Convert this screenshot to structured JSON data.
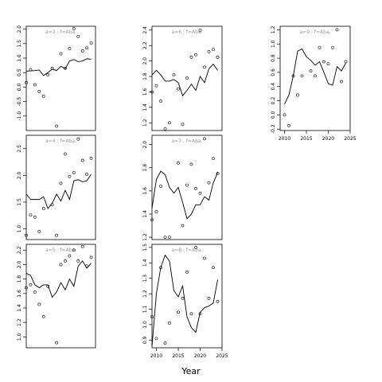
{
  "figure": {
    "xlabel": "Year"
  },
  "chart_data": [
    {
      "type": "line",
      "title": "a=3 : f=Aba.",
      "xlim": [
        2009,
        2025
      ],
      "ylim": [
        -1.5,
        2.1
      ],
      "yticks": [
        -1.0,
        -0.5,
        0.0,
        0.5,
        1.0,
        1.5,
        2.0
      ],
      "show_xticks": false,
      "series": [
        {
          "kind": "line",
          "x": [
            2009,
            2010,
            2011,
            2012,
            2013,
            2014,
            2015,
            2016,
            2017,
            2018,
            2019,
            2020,
            2021,
            2022,
            2023,
            2024
          ],
          "y": [
            0.55,
            0.56,
            0.57,
            0.59,
            0.4,
            0.5,
            0.62,
            0.57,
            0.72,
            0.63,
            0.9,
            0.95,
            0.88,
            0.9,
            0.98,
            0.96
          ]
        },
        {
          "kind": "points",
          "x": [
            2009,
            2010,
            2011,
            2012,
            2013,
            2014,
            2015,
            2016,
            2017,
            2018,
            2019,
            2020,
            2021,
            2022,
            2023,
            2024
          ],
          "y": [
            0.15,
            0.6,
            0.08,
            -0.15,
            -0.32,
            0.42,
            0.65,
            -1.35,
            1.15,
            0.65,
            1.33,
            2.02,
            1.75,
            1.25,
            1.35,
            1.52
          ]
        }
      ]
    },
    {
      "type": "line",
      "title": "a=6 : f=Aba.",
      "xlim": [
        2009,
        2025
      ],
      "ylim": [
        1.1,
        2.45
      ],
      "yticks": [
        1.2,
        1.4,
        1.6,
        1.8,
        2.0,
        2.2,
        2.4
      ],
      "show_xticks": false,
      "series": [
        {
          "kind": "line",
          "x": [
            2009,
            2010,
            2011,
            2012,
            2013,
            2014,
            2015,
            2016,
            2017,
            2018,
            2019,
            2020,
            2021,
            2022,
            2023,
            2024
          ],
          "y": [
            1.82,
            1.88,
            1.82,
            1.74,
            1.74,
            1.76,
            1.72,
            1.55,
            1.62,
            1.7,
            1.62,
            1.8,
            1.72,
            1.9,
            1.96,
            1.88
          ]
        },
        {
          "kind": "points",
          "x": [
            2009,
            2010,
            2011,
            2012,
            2013,
            2014,
            2015,
            2016,
            2017,
            2018,
            2019,
            2020,
            2021,
            2022,
            2023,
            2024
          ],
          "y": [
            1.6,
            1.68,
            1.48,
            1.12,
            1.2,
            1.82,
            1.64,
            1.18,
            1.78,
            2.05,
            2.08,
            2.4,
            1.92,
            2.12,
            2.15,
            2.05
          ]
        }
      ]
    },
    {
      "type": "line",
      "title": "a=9 : f=Aba.",
      "xlim": [
        2009,
        2025
      ],
      "ylim": [
        -0.22,
        1.25
      ],
      "yticks": [
        -0.2,
        0.0,
        0.2,
        0.4,
        0.6,
        0.8,
        1.0,
        1.2
      ],
      "show_xticks": true,
      "xticks": [
        2010,
        2015,
        2020,
        2025
      ],
      "series": [
        {
          "kind": "line",
          "x": [
            2010,
            2011,
            2012,
            2013,
            2014,
            2015,
            2016,
            2017,
            2018,
            2019,
            2020,
            2021,
            2022,
            2023,
            2024
          ],
          "y": [
            0.15,
            0.28,
            0.55,
            0.9,
            0.93,
            0.82,
            0.77,
            0.7,
            0.75,
            0.6,
            0.44,
            0.42,
            0.68,
            0.62,
            0.73
          ]
        },
        {
          "kind": "points",
          "x": [
            2010,
            2011,
            2012,
            2013,
            2014,
            2016,
            2017,
            2018,
            2019,
            2020,
            2021,
            2022,
            2023,
            2024
          ],
          "y": [
            0.0,
            -0.15,
            0.55,
            0.28,
            0.55,
            0.62,
            0.55,
            0.95,
            0.75,
            0.72,
            0.95,
            1.2,
            0.47,
            0.75
          ]
        }
      ]
    },
    {
      "type": "line",
      "title": "a=4 : f=Aba.",
      "xlim": [
        2009,
        2025
      ],
      "ylim": [
        0.8,
        2.75
      ],
      "yticks": [
        1.0,
        1.5,
        2.0,
        2.5
      ],
      "show_xticks": false,
      "series": [
        {
          "kind": "line",
          "x": [
            2009,
            2010,
            2011,
            2012,
            2013,
            2014,
            2015,
            2016,
            2017,
            2018,
            2019,
            2020,
            2021,
            2022,
            2023,
            2024
          ],
          "y": [
            1.65,
            1.55,
            1.55,
            1.55,
            1.6,
            1.38,
            1.48,
            1.65,
            1.52,
            1.72,
            1.55,
            1.9,
            1.92,
            1.88,
            1.9,
            2.02
          ]
        },
        {
          "kind": "points",
          "x": [
            2009,
            2010,
            2011,
            2012,
            2013,
            2015,
            2016,
            2017,
            2018,
            2019,
            2020,
            2021,
            2022,
            2023,
            2024
          ],
          "y": [
            0.88,
            1.26,
            1.22,
            0.95,
            1.38,
            1.45,
            0.88,
            1.85,
            2.4,
            1.98,
            2.05,
            2.68,
            2.28,
            2.02,
            2.32
          ]
        }
      ]
    },
    {
      "type": "line",
      "title": "a=7 : f=Aba.",
      "xlim": [
        2009,
        2025
      ],
      "ylim": [
        1.18,
        2.08
      ],
      "yticks": [
        1.2,
        1.4,
        1.6,
        1.8,
        2.0
      ],
      "show_xticks": false,
      "series": [
        {
          "kind": "line",
          "x": [
            2009,
            2010,
            2011,
            2012,
            2013,
            2014,
            2015,
            2016,
            2017,
            2018,
            2019,
            2020,
            2021,
            2022,
            2023,
            2024
          ],
          "y": [
            1.45,
            1.7,
            1.77,
            1.74,
            1.63,
            1.58,
            1.63,
            1.5,
            1.36,
            1.4,
            1.48,
            1.48,
            1.55,
            1.52,
            1.67,
            1.76
          ]
        },
        {
          "kind": "points",
          "x": [
            2009,
            2010,
            2011,
            2012,
            2013,
            2015,
            2016,
            2017,
            2018,
            2019,
            2020,
            2021,
            2022,
            2023,
            2024
          ],
          "y": [
            1.35,
            1.42,
            1.64,
            1.2,
            1.2,
            1.84,
            1.3,
            1.65,
            1.83,
            1.62,
            1.58,
            2.05,
            1.67,
            1.88,
            1.75
          ]
        }
      ]
    },
    {
      "type": "line",
      "title": "a=5 : f=Aba.",
      "xlim": [
        2009,
        2025
      ],
      "ylim": [
        0.85,
        2.28
      ],
      "yticks": [
        1.0,
        1.2,
        1.4,
        1.6,
        1.8,
        2.0,
        2.2
      ],
      "show_xticks": false,
      "series": [
        {
          "kind": "line",
          "x": [
            2009,
            2010,
            2011,
            2012,
            2013,
            2014,
            2015,
            2016,
            2017,
            2018,
            2019,
            2020,
            2021,
            2022,
            2023,
            2024
          ],
          "y": [
            1.88,
            1.85,
            1.72,
            1.68,
            1.72,
            1.72,
            1.55,
            1.62,
            1.75,
            1.65,
            1.8,
            1.7,
            1.98,
            2.05,
            1.95,
            2.02
          ]
        },
        {
          "kind": "points",
          "x": [
            2009,
            2010,
            2011,
            2012,
            2013,
            2014,
            2016,
            2017,
            2018,
            2019,
            2020,
            2021,
            2022,
            2023,
            2024
          ],
          "y": [
            1.68,
            1.72,
            1.62,
            1.45,
            1.28,
            1.7,
            0.92,
            2.0,
            2.05,
            2.12,
            2.2,
            2.05,
            2.25,
            1.98,
            2.1
          ]
        }
      ]
    },
    {
      "type": "line",
      "title": "a=8 : f=Aba.",
      "xlim": [
        2009,
        2025
      ],
      "ylim": [
        0.85,
        1.52
      ],
      "yticks": [
        0.9,
        1.0,
        1.1,
        1.2,
        1.3,
        1.4,
        1.5
      ],
      "show_xticks": true,
      "xticks": [
        2010,
        2015,
        2020,
        2025
      ],
      "series": [
        {
          "kind": "line",
          "x": [
            2009,
            2010,
            2011,
            2012,
            2013,
            2014,
            2015,
            2016,
            2017,
            2018,
            2019,
            2020,
            2021,
            2022,
            2023,
            2024
          ],
          "y": [
            0.86,
            1.2,
            1.37,
            1.45,
            1.41,
            1.22,
            1.18,
            1.25,
            1.05,
            0.98,
            0.95,
            1.08,
            1.11,
            1.12,
            1.14,
            1.29
          ]
        },
        {
          "kind": "points",
          "x": [
            2009,
            2010,
            2011,
            2012,
            2013,
            2015,
            2016,
            2017,
            2018,
            2019,
            2020,
            2021,
            2022,
            2023,
            2024
          ],
          "y": [
            1.05,
            0.91,
            1.37,
            0.88,
            1.01,
            1.08,
            1.17,
            1.34,
            1.07,
            1.5,
            1.07,
            1.43,
            1.17,
            1.37,
            1.15
          ]
        }
      ]
    }
  ]
}
